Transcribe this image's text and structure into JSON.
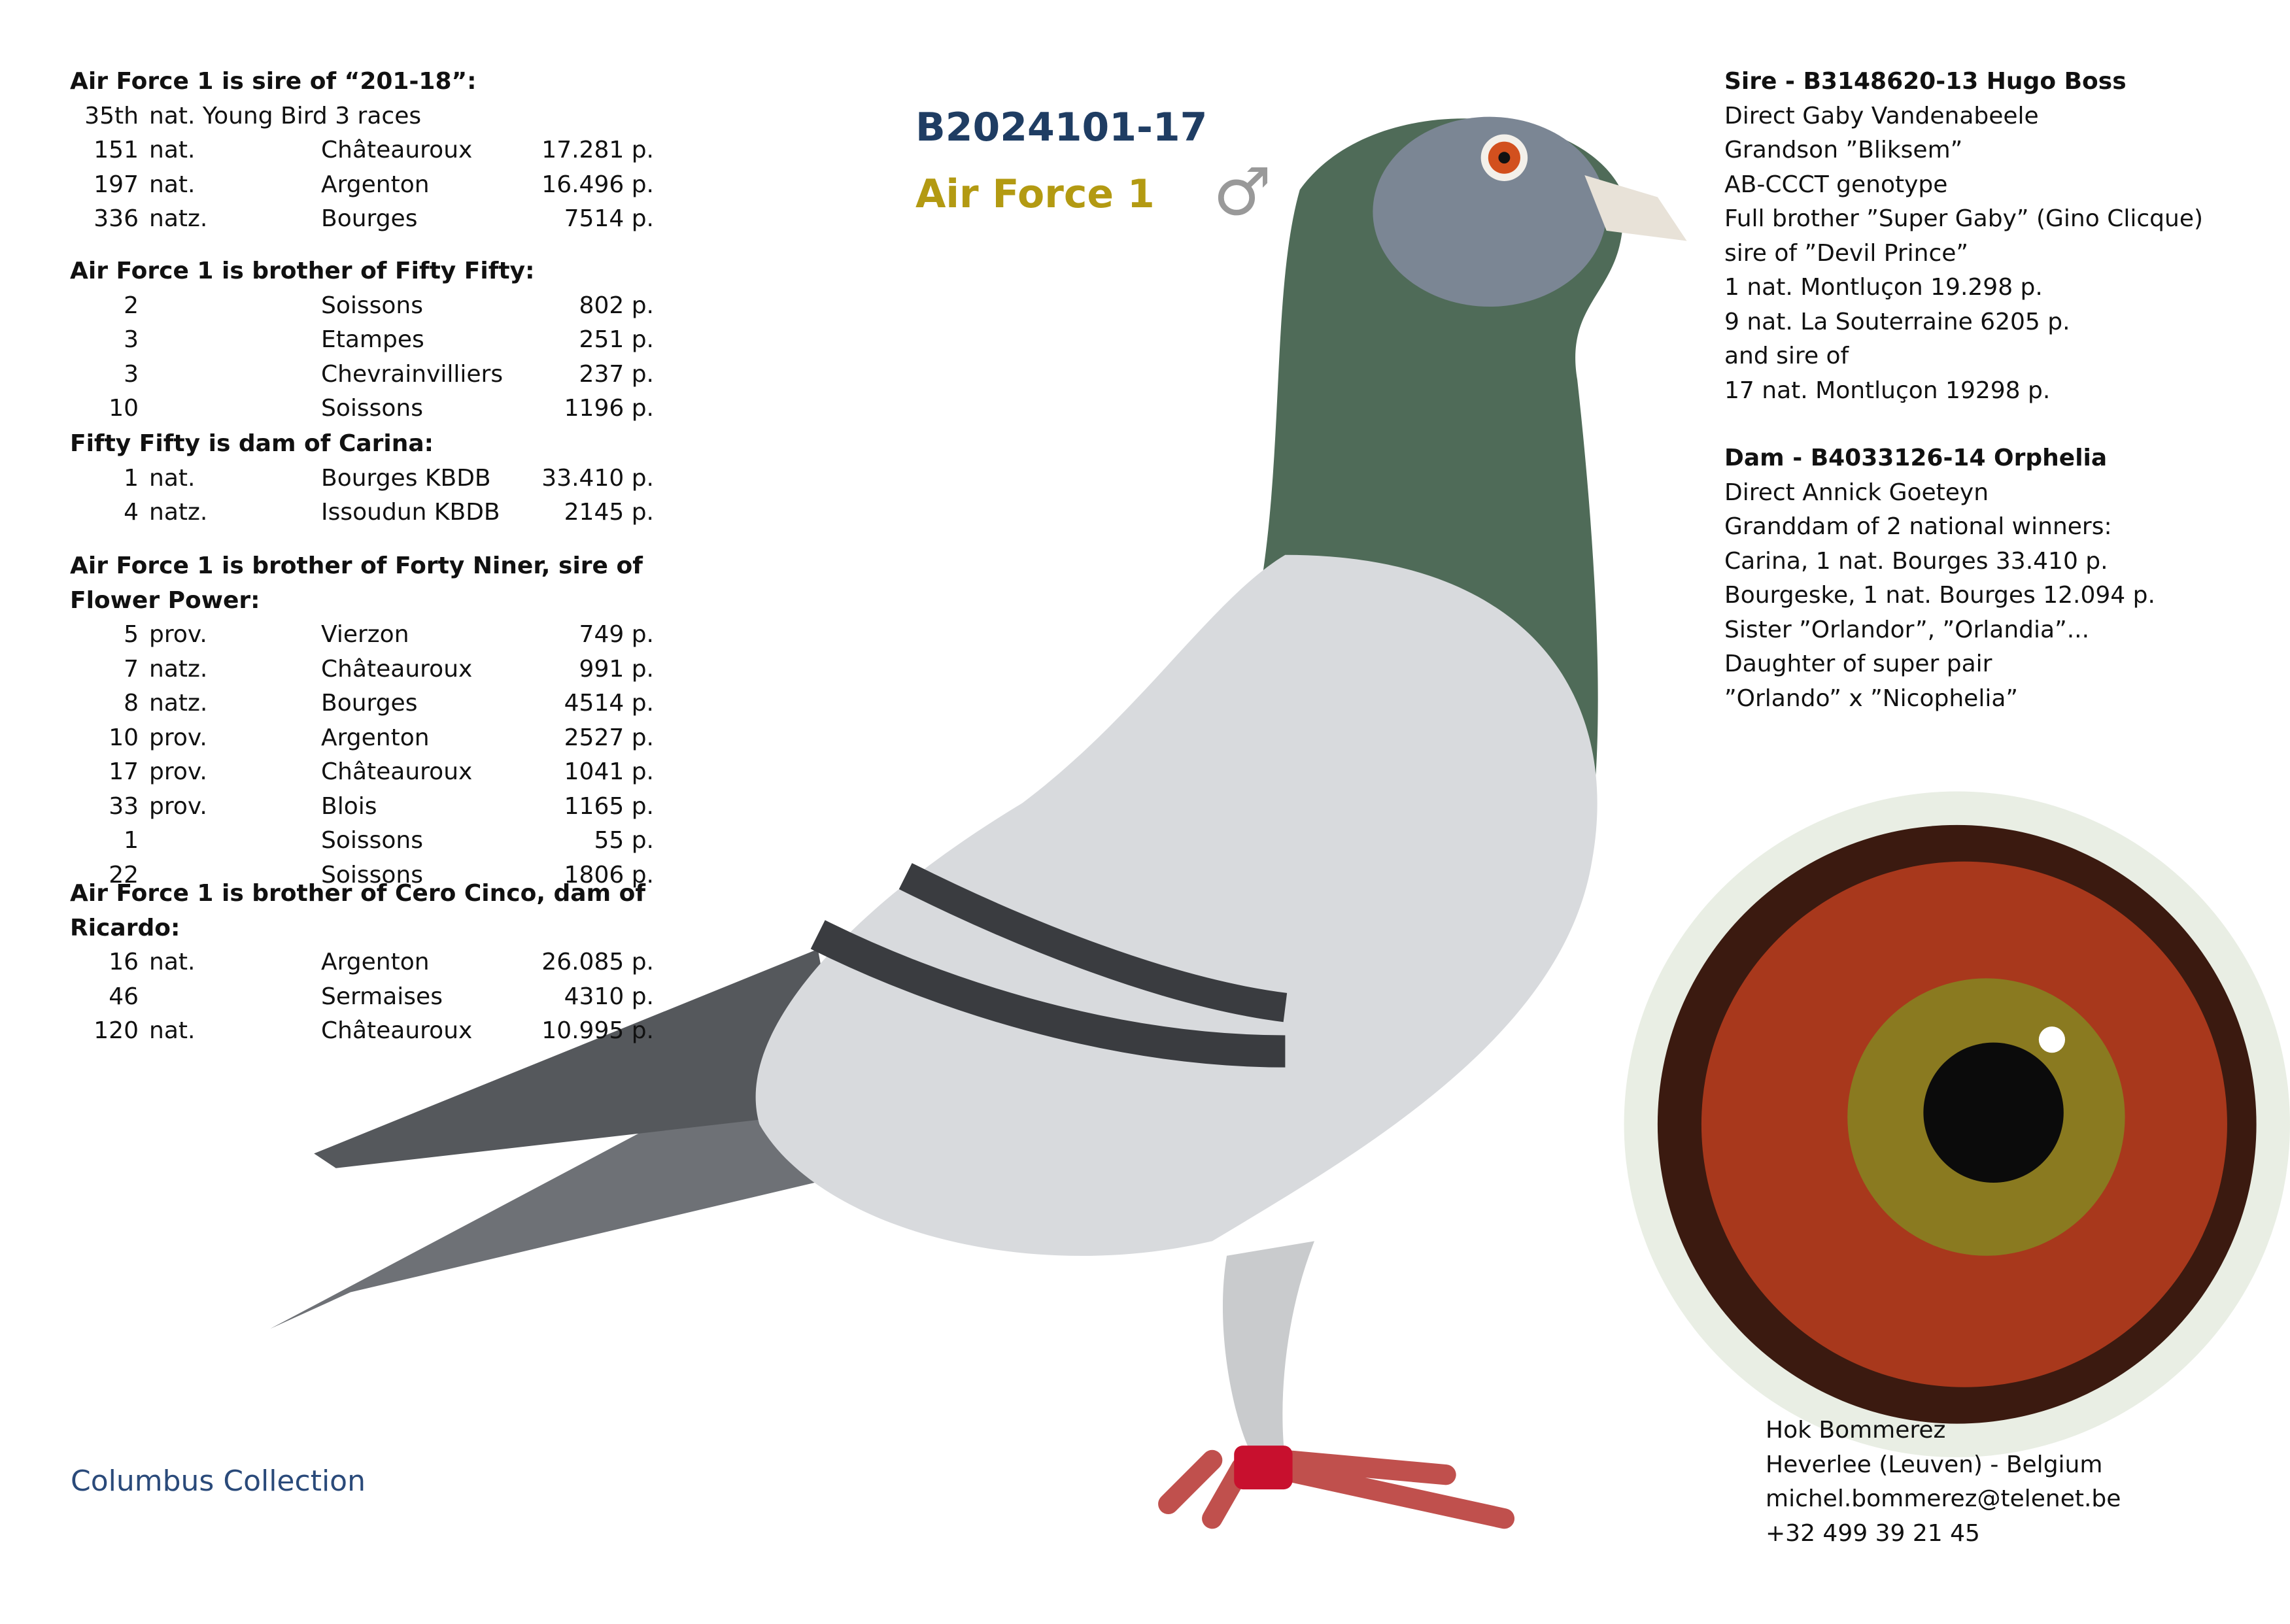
{
  "header": {
    "ring": "B2024101-17",
    "name": "Air Force 1",
    "sex": "♂"
  },
  "performance": [
    {
      "heading": "Air Force 1 is sire of “201-18”:",
      "rows": [
        {
          "rank": "35th",
          "level": "nat. Young Bird 3 races"
        },
        {
          "rank": "151",
          "level": "nat.",
          "place": "Châteauroux",
          "points": "17.281 p."
        },
        {
          "rank": "197",
          "level": "nat.",
          "place": "Argenton",
          "points": "16.496 p."
        },
        {
          "rank": "336",
          "level": "natz.",
          "place": "Bourges",
          "points": "7514 p."
        }
      ]
    },
    {
      "heading": "Air Force 1 is brother of Fifty Fifty:",
      "rows": [
        {
          "rank": "2",
          "place": "Soissons",
          "points": "802 p."
        },
        {
          "rank": "3",
          "place": "Etampes",
          "points": "251 p."
        },
        {
          "rank": "3",
          "place": "Chevrainvilliers",
          "points": "237 p."
        },
        {
          "rank": "10",
          "place": "Soissons",
          "points": "1196 p."
        }
      ]
    },
    {
      "heading": "Fifty Fifty is dam of Carina:",
      "rows": [
        {
          "rank": "1",
          "level": "nat.",
          "place": "Bourges KBDB",
          "points": "33.410 p."
        },
        {
          "rank": "4",
          "level": "natz.",
          "place": "Issoudun KBDB",
          "points": "2145 p."
        }
      ]
    },
    {
      "heading": "Air Force 1 is brother of Forty Niner, sire of Flower Power:",
      "rows": [
        {
          "rank": "5",
          "level": "prov.",
          "place": "Vierzon",
          "points": "749 p."
        },
        {
          "rank": "7",
          "level": "natz.",
          "place": "Châteauroux",
          "points": "991 p."
        },
        {
          "rank": "8",
          "level": "natz.",
          "place": "Bourges",
          "points": "4514 p."
        },
        {
          "rank": "10",
          "level": "prov.",
          "place": "Argenton",
          "points": "2527 p."
        },
        {
          "rank": "17",
          "level": "prov.",
          "place": "Châteauroux",
          "points": "1041 p."
        },
        {
          "rank": "33",
          "level": "prov.",
          "place": "Blois",
          "points": "1165 p."
        },
        {
          "rank": "1",
          "place": "Soissons",
          "points": "55 p."
        },
        {
          "rank": "22",
          "place": "Soissons",
          "points": "1806 p."
        }
      ]
    },
    {
      "heading": "Air Force 1 is brother of Cero Cinco, dam of Ricardo:",
      "rows": [
        {
          "rank": "16",
          "level": "nat.",
          "place": "Argenton",
          "points": "26.085 p."
        },
        {
          "rank": "46",
          "place": "Sermaises",
          "points": "4310 p."
        },
        {
          "rank": "120",
          "level": "nat.",
          "place": "Châteauroux",
          "points": "10.995 p."
        }
      ]
    }
  ],
  "sire": {
    "heading": "Sire - B3148620-13 Hugo Boss",
    "lines": [
      "Direct Gaby Vandenabeele",
      "Grandson ”Bliksem”",
      "AB-CCCT genotype",
      "Full brother ”Super Gaby” (Gino Clicque)",
      "sire of ”Devil Prince”",
      "1 nat. Montluçon 19.298 p.",
      "9 nat. La Souterraine 6205 p.",
      "and sire of",
      "17 nat. Montluçon 19298 p."
    ]
  },
  "dam": {
    "heading": "Dam - B4033126-14 Orphelia",
    "lines": [
      "Direct Annick Goeteyn",
      "Granddam of 2 national winners:",
      "Carina, 1 nat. Bourges 33.410 p.",
      "Bourgeske, 1 nat. Bourges 12.094 p.",
      "Sister ”Orlandor”, ”Orlandia”...",
      "Daughter of super pair",
      "”Orlando” x ”Nicophelia”"
    ]
  },
  "contact": {
    "lines": [
      "Hok Bommerez",
      "Heverlee (Leuven) - Belgium",
      "michel.bommerez@telenet.be",
      "+32 499 39 21 45"
    ]
  },
  "footer": {
    "brand": "Columbus Collection"
  }
}
